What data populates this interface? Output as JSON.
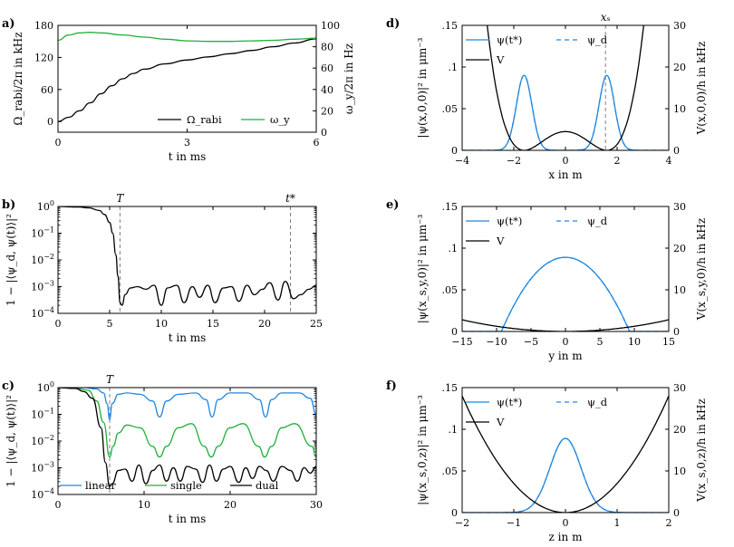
{
  "colors": {
    "black": "#000000",
    "blue": "#1f87e0",
    "green": "#1fb03a",
    "dash": "#808080"
  },
  "chart_data": [
    {
      "id": "a",
      "panel_label": "a)",
      "type": "line",
      "xlabel": "t in ms",
      "ylabel": "Ω_rabi/2π in kHz",
      "y2label": "ω_y/2π in Hz",
      "xlim": [
        0,
        6
      ],
      "ylim": [
        -20,
        180
      ],
      "y2lim": [
        0,
        100
      ],
      "xticks": [
        0,
        3,
        6
      ],
      "yticks": [
        0,
        60,
        120,
        180
      ],
      "y2ticks": [
        0,
        20,
        40,
        60,
        80,
        100
      ],
      "legend_position": "lower-right",
      "series": [
        {
          "name": "Ω_rabi",
          "color": "#000000",
          "axis": "left",
          "x": [
            0,
            0.25,
            0.5,
            0.75,
            1,
            1.25,
            1.5,
            1.75,
            2,
            2.5,
            3,
            3.5,
            4,
            4.5,
            5,
            5.5,
            6
          ],
          "y": [
            0,
            8,
            20,
            35,
            52,
            67,
            80,
            90,
            98,
            108,
            115,
            121,
            127,
            133,
            140,
            147,
            155
          ]
        },
        {
          "name": "ω_y",
          "color": "#1fb03a",
          "axis": "right",
          "x": [
            0,
            0.25,
            0.5,
            0.75,
            1,
            1.5,
            2,
            2.5,
            3,
            3.5,
            4,
            4.5,
            5,
            5.5,
            6
          ],
          "y": [
            86,
            91,
            93,
            93.5,
            93,
            91,
            89,
            87,
            85.5,
            85,
            85,
            85.5,
            86,
            87,
            88
          ]
        }
      ]
    },
    {
      "id": "b",
      "panel_label": "b)",
      "type": "line",
      "xlabel": "t in ms",
      "ylabel": "1 − |⟨ψ_d, ψ(t)⟩|²",
      "xlim": [
        0,
        25
      ],
      "ylog": true,
      "ylim_exp": [
        -4,
        0
      ],
      "xticks": [
        0,
        5,
        10,
        15,
        20,
        25
      ],
      "yticks_exp": [
        -4,
        -3,
        -2,
        -1,
        0
      ],
      "vlines": [
        {
          "x": 6,
          "label": "T"
        },
        {
          "x": 22.5,
          "label": "t*"
        }
      ],
      "series": [
        {
          "name": "",
          "color": "#000000",
          "x": [
            0,
            2,
            3,
            4,
            4.5,
            5,
            5.3,
            5.6,
            5.8,
            6.0,
            6.2,
            6.5,
            7,
            7.7,
            8.5,
            9.3,
            10,
            10.6,
            11.5,
            12.2,
            13,
            13.7,
            14.5,
            15.2,
            16,
            16.8,
            17.5,
            18.3,
            19,
            19.8,
            20.5,
            21.3,
            22,
            22.8,
            23.5,
            24.3,
            25
          ],
          "y_exp": [
            0,
            -0.02,
            -0.05,
            -0.15,
            -0.3,
            -0.6,
            -1.0,
            -1.8,
            -2.6,
            -3.6,
            -3.7,
            -3.3,
            -3.05,
            -3.0,
            -3.1,
            -2.95,
            -3.7,
            -3.05,
            -2.95,
            -3.6,
            -3.0,
            -3.4,
            -2.95,
            -3.6,
            -3.05,
            -3.0,
            -3.55,
            -2.95,
            -3.3,
            -3.1,
            -2.85,
            -3.5,
            -2.8,
            -3.45,
            -3.3,
            -3.1,
            -2.95
          ]
        }
      ]
    },
    {
      "id": "c",
      "panel_label": "c)",
      "type": "line",
      "xlabel": "t in ms",
      "ylabel": "1 − |⟨ψ_d, ψ(t)⟩|²",
      "xlim": [
        0,
        30
      ],
      "ylog": true,
      "ylim_exp": [
        -4,
        0
      ],
      "xticks": [
        0,
        10,
        20,
        30
      ],
      "yticks_exp": [
        -4,
        -3,
        -2,
        -1,
        0
      ],
      "vlines": [
        {
          "x": 6,
          "label": "T"
        }
      ],
      "legend_position": "bottom",
      "series": [
        {
          "name": "linear",
          "color": "#1f87e0",
          "x": [
            0,
            3,
            4.5,
            5.3,
            5.7,
            6.0,
            6.3,
            7,
            8,
            9.5,
            11,
            11.8,
            12.6,
            14,
            16,
            17.2,
            17.9,
            18.6,
            20,
            22,
            23.4,
            24.1,
            24.8,
            26,
            28,
            29.3,
            30
          ],
          "y_exp": [
            0,
            0,
            -0.05,
            -0.2,
            -0.6,
            -1.2,
            -0.6,
            -0.25,
            -0.2,
            -0.25,
            -0.5,
            -1.1,
            -0.5,
            -0.25,
            -0.2,
            -0.45,
            -1.1,
            -0.45,
            -0.2,
            -0.2,
            -0.45,
            -1.1,
            -0.45,
            -0.2,
            -0.2,
            -0.4,
            -1.0
          ]
        },
        {
          "name": "single",
          "color": "#1fb03a",
          "x": [
            0,
            2,
            3.5,
            4.5,
            5.3,
            6.0,
            6.4,
            7,
            8,
            9.5,
            11,
            11.8,
            12.6,
            14,
            15.5,
            17,
            17.8,
            18.6,
            20,
            21.5,
            23.3,
            24.0,
            24.8,
            26,
            27.5,
            29.5,
            30
          ],
          "y_exp": [
            0,
            -0.02,
            -0.1,
            -0.5,
            -1.3,
            -2.6,
            -2.2,
            -1.7,
            -1.4,
            -1.5,
            -2.2,
            -2.6,
            -2.2,
            -1.5,
            -1.35,
            -2.2,
            -2.6,
            -2.2,
            -1.5,
            -1.35,
            -2.2,
            -2.6,
            -2.2,
            -1.5,
            -1.35,
            -2.2,
            -2.6
          ]
        },
        {
          "name": "dual",
          "color": "#000000",
          "x": [
            0,
            2,
            3,
            4,
            5,
            5.5,
            6.0,
            6.3,
            7,
            7.8,
            8.6,
            9.4,
            10.2,
            11,
            11.8,
            12.6,
            13.4,
            14.2,
            15,
            16,
            16.8,
            17.6,
            18.4,
            19.2,
            20,
            21,
            21.8,
            22.6,
            23.4,
            24.2,
            25,
            26,
            27,
            27.8,
            28.6,
            29.3,
            30
          ],
          "y_exp": [
            0,
            -0.03,
            -0.15,
            -0.4,
            -1.5,
            -2.8,
            -3.7,
            -3.6,
            -3.1,
            -3.05,
            -3.5,
            -2.9,
            -3.6,
            -3.1,
            -2.9,
            -3.5,
            -3.0,
            -3.5,
            -2.95,
            -3.05,
            -3.55,
            -2.9,
            -3.5,
            -3.05,
            -2.95,
            -3.55,
            -3.0,
            -3.4,
            -2.95,
            -3.1,
            -3.5,
            -2.95,
            -3.1,
            -3.5,
            -3.0,
            -3.2,
            -2.95
          ]
        }
      ]
    },
    {
      "id": "d",
      "panel_label": "d)",
      "type": "line",
      "xlabel": "x in m",
      "ylabel": "|ψ(x,0,0)|² in μm⁻³",
      "y2label": "V(x,0,0)/h in kHz",
      "xlim": [
        -4,
        4
      ],
      "ylim": [
        0,
        0.15
      ],
      "y2lim": [
        0,
        30
      ],
      "xticks": [
        -4,
        -2,
        0,
        2,
        4
      ],
      "yticks": [
        0,
        0.05,
        0.1,
        0.15
      ],
      "y2ticks": [
        0,
        10,
        20,
        30
      ],
      "vlines": [
        {
          "x": 1.55,
          "label": "x_s"
        }
      ],
      "legend_position": "top-left",
      "series": [
        {
          "name": "ψ(t*)",
          "color": "#1f87e0",
          "kind": "double_gauss",
          "center": 1.6,
          "amp": 0.09,
          "width": 0.3
        },
        {
          "name": "ψ_d",
          "color": "#1f87e0",
          "dashed": true,
          "kind": "double_gauss",
          "center": 1.6,
          "amp": 0.09,
          "width": 0.3
        },
        {
          "name": "V",
          "color": "#000000",
          "axis": "right",
          "kind": "double_well",
          "barrier": 4.5,
          "min": 1.6
        }
      ]
    },
    {
      "id": "e",
      "panel_label": "e)",
      "type": "line",
      "xlabel": "y in m",
      "ylabel": "|ψ(x_s,y,0)|² in μm⁻³",
      "y2label": "V(x_s,y,0)/h in kHz",
      "xlim": [
        -15,
        15
      ],
      "ylim": [
        0,
        0.15
      ],
      "y2lim": [
        0,
        30
      ],
      "xticks": [
        -15,
        -10,
        -5,
        0,
        5,
        10,
        15
      ],
      "yticks": [
        0,
        0.05,
        0.1,
        0.15
      ],
      "y2ticks": [
        0,
        10,
        20,
        30
      ],
      "legend_position": "top-left",
      "series": [
        {
          "name": "ψ(t*)",
          "color": "#1f87e0",
          "kind": "parabola_density",
          "amp": 0.089,
          "radius": 9.3
        },
        {
          "name": "ψ_d",
          "color": "#1f87e0",
          "dashed": true,
          "kind": "parabola_density",
          "amp": 0.089,
          "radius": 9.3
        },
        {
          "name": "V",
          "color": "#000000",
          "axis": "right",
          "kind": "harmonic",
          "value_at_edge": 2.8,
          "edge": 15
        }
      ]
    },
    {
      "id": "f",
      "panel_label": "f)",
      "type": "line",
      "xlabel": "z in m",
      "ylabel": "|ψ(x_s,0,z)|² in μm⁻³",
      "y2label": "V(x_s,0,z)/h in kHz",
      "xlim": [
        -2,
        2
      ],
      "ylim": [
        0,
        0.15
      ],
      "y2lim": [
        0,
        30
      ],
      "xticks": [
        -2,
        -1,
        0,
        1,
        2
      ],
      "yticks": [
        0,
        0.05,
        0.1,
        0.15
      ],
      "y2ticks": [
        0,
        10,
        20,
        30
      ],
      "legend_position": "top-left",
      "series": [
        {
          "name": "ψ(t*)",
          "color": "#1f87e0",
          "kind": "gauss",
          "amp": 0.089,
          "width": 0.3
        },
        {
          "name": "ψ_d",
          "color": "#1f87e0",
          "dashed": true,
          "kind": "gauss",
          "amp": 0.089,
          "width": 0.3
        },
        {
          "name": "V",
          "color": "#000000",
          "axis": "right",
          "kind": "harmonic",
          "value_at_edge": 28,
          "edge": 2
        }
      ]
    }
  ]
}
